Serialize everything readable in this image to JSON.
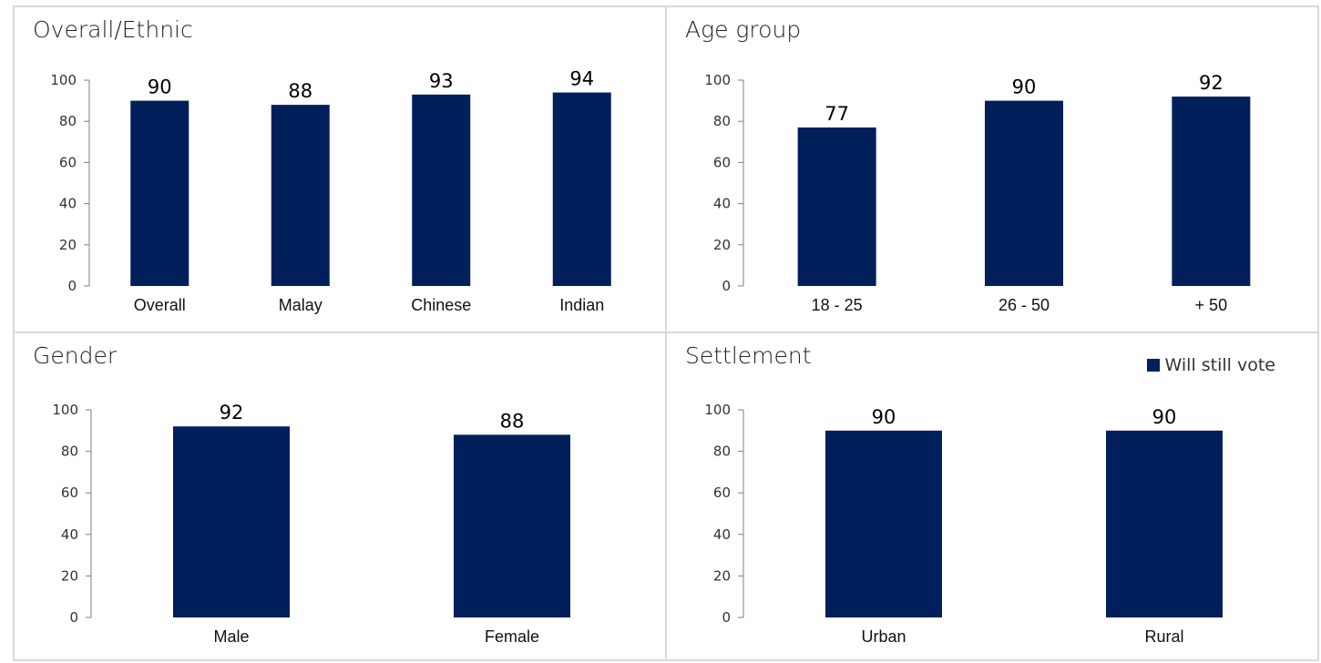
{
  "colors": {
    "bar": "#001f5b",
    "axis": "#7f7f7f",
    "border": "#d9d9d9"
  },
  "legend": {
    "label": "Will still vote"
  },
  "chart_data": [
    {
      "type": "bar",
      "title": "Overall/Ethnic",
      "categories": [
        "Overall",
        "Malay",
        "Chinese",
        "Indian"
      ],
      "series": [
        {
          "name": "Will still vote",
          "values": [
            90,
            88,
            93,
            94
          ]
        }
      ],
      "ylim": [
        0,
        100
      ],
      "yticks": [
        0,
        20,
        40,
        60,
        80,
        100
      ]
    },
    {
      "type": "bar",
      "title": "Age group",
      "categories": [
        "18 - 25",
        "26 - 50",
        "+ 50"
      ],
      "series": [
        {
          "name": "Will still vote",
          "values": [
            77,
            90,
            92
          ]
        }
      ],
      "ylim": [
        0,
        100
      ],
      "yticks": [
        0,
        20,
        40,
        60,
        80,
        100
      ]
    },
    {
      "type": "bar",
      "title": "Gender",
      "categories": [
        "Male",
        "Female"
      ],
      "series": [
        {
          "name": "Will still vote",
          "values": [
            92,
            88
          ]
        }
      ],
      "ylim": [
        0,
        100
      ],
      "yticks": [
        0,
        20,
        40,
        60,
        80,
        100
      ]
    },
    {
      "type": "bar",
      "title": "Settlement",
      "categories": [
        "Urban",
        "Rural"
      ],
      "series": [
        {
          "name": "Will still vote",
          "values": [
            90,
            90
          ]
        }
      ],
      "ylim": [
        0,
        100
      ],
      "yticks": [
        0,
        20,
        40,
        60,
        80,
        100
      ],
      "legend": "top-right"
    }
  ]
}
